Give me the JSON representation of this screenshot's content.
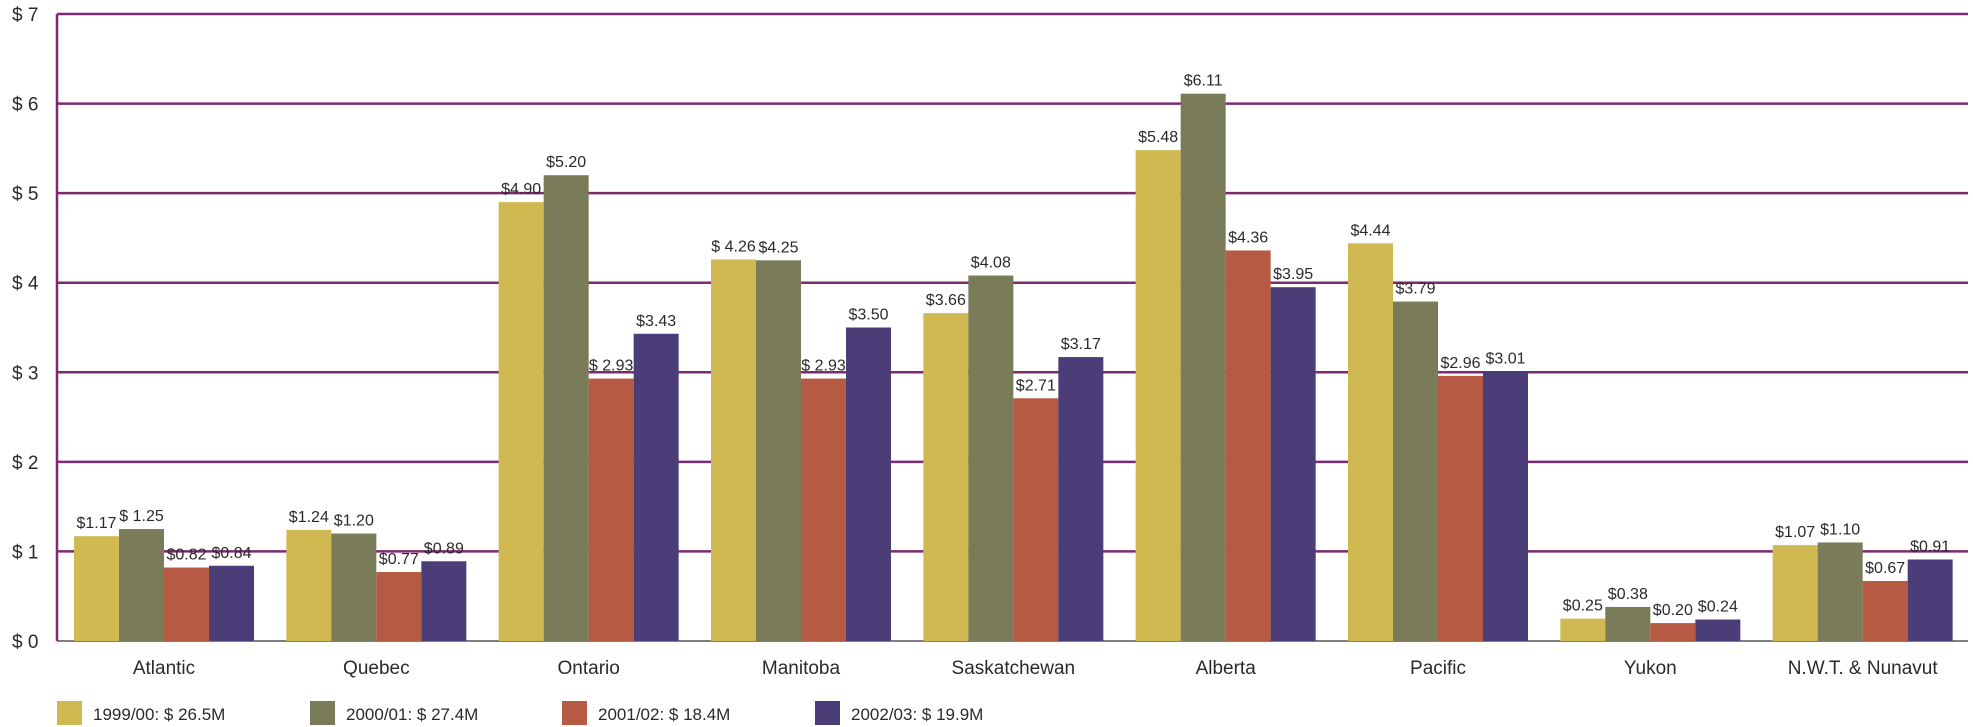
{
  "chart_data": {
    "type": "bar",
    "title": "",
    "xlabel": "",
    "ylabel": "",
    "ylim": [
      0,
      7
    ],
    "yticks": [
      {
        "value": 0,
        "label": "$ 0"
      },
      {
        "value": 1,
        "label": "$ 1"
      },
      {
        "value": 2,
        "label": "$ 2"
      },
      {
        "value": 3,
        "label": "$ 3"
      },
      {
        "value": 4,
        "label": "$ 4"
      },
      {
        "value": 5,
        "label": "$ 5"
      },
      {
        "value": 6,
        "label": "$ 6"
      },
      {
        "value": 7,
        "label": "$ 7"
      }
    ],
    "grid": true,
    "legend_position": "bottom",
    "categories": [
      "Atlantic",
      "Quebec",
      "Ontario",
      "Manitoba",
      "Saskatchewan",
      "Alberta",
      "Pacific",
      "Yukon",
      "N.W.T. & Nunavut"
    ],
    "series": [
      {
        "name": "1999/00: $ 26.5M",
        "color": "#d1b952",
        "values": [
          1.17,
          1.24,
          4.9,
          4.26,
          3.66,
          5.48,
          4.44,
          0.25,
          1.07
        ],
        "labels": [
          "$1.17",
          "$1.24",
          "$4.90",
          "$ 4.26",
          "$3.66",
          "$5.48",
          "$4.44",
          "$0.25",
          "$1.07"
        ]
      },
      {
        "name": "2000/01: $ 27.4M",
        "color": "#7a7b59",
        "values": [
          1.25,
          1.2,
          5.2,
          4.25,
          4.08,
          6.11,
          3.79,
          0.38,
          1.1
        ],
        "labels": [
          "$ 1.25",
          "$1.20",
          "$5.20",
          "$4.25",
          "$4.08",
          "$6.11",
          "$3.79",
          "$0.38",
          "$1.10"
        ]
      },
      {
        "name": "2001/02: $ 18.4M",
        "color": "#b65a44",
        "values": [
          0.82,
          0.77,
          2.93,
          2.93,
          2.71,
          4.36,
          2.96,
          0.2,
          0.67
        ],
        "labels": [
          "$0.82",
          "$0.77",
          "$ 2.93",
          "$ 2.93",
          "$2.71",
          "$4.36",
          "$2.96",
          "$0.20",
          "$0.67"
        ]
      },
      {
        "name": "2002/03: $ 19.9M",
        "color": "#4b3d78",
        "values": [
          0.84,
          0.89,
          3.43,
          3.5,
          3.17,
          3.95,
          3.01,
          0.24,
          0.91
        ],
        "labels": [
          "$0.84",
          "$0.89",
          "$3.43",
          "$3.50",
          "$3.17",
          "$3.95",
          "$3.01",
          "$0.24",
          "$0.91"
        ]
      }
    ],
    "colors": {
      "gridline": "#7d2a72",
      "baseline": "#555555",
      "text": "#2a2a2a"
    }
  }
}
